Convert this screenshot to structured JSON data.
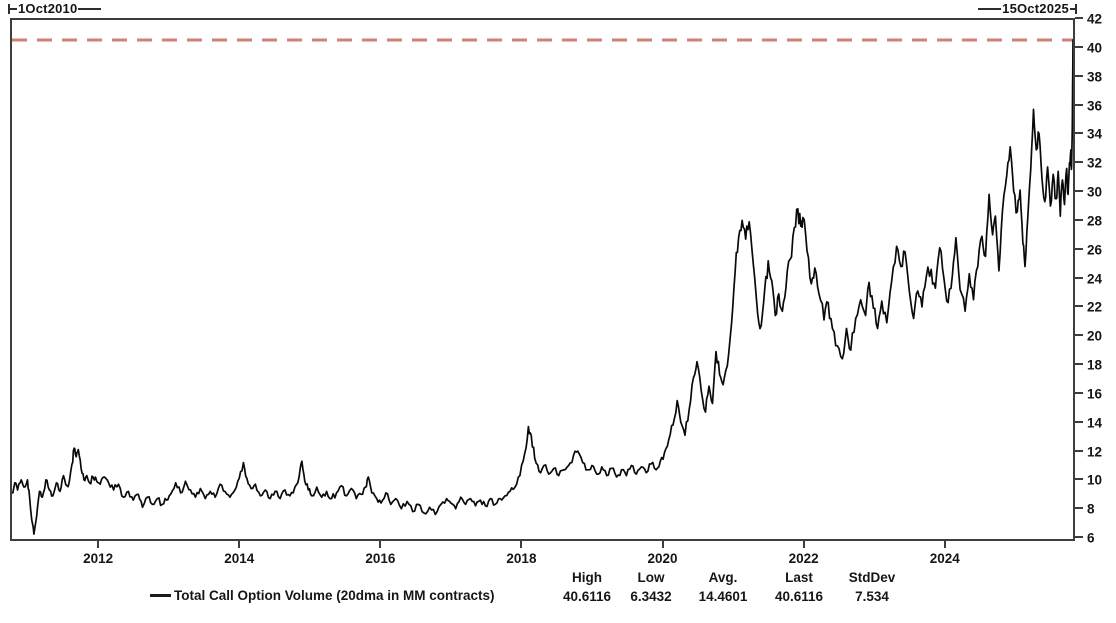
{
  "header": {
    "left_date": "1Oct2010",
    "right_date": "15Oct2025"
  },
  "legend": {
    "series_label": "Total Call Option Volume (20dma in MM contracts)"
  },
  "stats": {
    "headers": [
      "High",
      "Low",
      "Avg.",
      "Last",
      "StdDev"
    ],
    "values": [
      "40.6116",
      "6.3432",
      "14.4601",
      "40.6116",
      "7.534"
    ]
  },
  "colors": {
    "line": "#0a0a0a",
    "reference_dashed": "#cd8379",
    "axis": "#3d3d3d",
    "text": "#161616"
  },
  "chart_data": {
    "type": "line",
    "title": "",
    "xlabel": "",
    "ylabel": "",
    "x_range": [
      2010.75,
      2025.79
    ],
    "y_range": [
      6,
      42
    ],
    "grid": false,
    "legend_position": "bottom",
    "x_ticks": [
      2012,
      2014,
      2016,
      2018,
      2020,
      2022,
      2024
    ],
    "y_ticks": [
      42,
      40,
      38,
      36,
      34,
      32,
      30,
      28,
      26,
      24,
      22,
      20,
      18,
      16,
      14,
      12,
      10,
      8,
      6
    ],
    "reference_line": {
      "value": 40.6116,
      "style": "dashed",
      "color": "#cd8379",
      "label": "high"
    },
    "summary": {
      "high": 40.6116,
      "low": 6.3432,
      "avg": 14.4601,
      "last": 40.6116,
      "stddev": 7.534
    },
    "series": [
      {
        "name": "Total Call Option Volume (20dma in MM contracts)",
        "color": "#0a0a0a",
        "points": [
          [
            2010.75,
            9.2
          ],
          [
            2010.79,
            9.9
          ],
          [
            2010.83,
            9.4
          ],
          [
            2010.88,
            10.1
          ],
          [
            2010.92,
            9.6
          ],
          [
            2010.97,
            10.1
          ],
          [
            2011.0,
            8.9
          ],
          [
            2011.03,
            7.3
          ],
          [
            2011.06,
            6.3432
          ],
          [
            2011.1,
            7.6
          ],
          [
            2011.14,
            9.3
          ],
          [
            2011.18,
            8.9
          ],
          [
            2011.23,
            10.1
          ],
          [
            2011.28,
            9.4
          ],
          [
            2011.33,
            9.0
          ],
          [
            2011.38,
            9.9
          ],
          [
            2011.43,
            9.3
          ],
          [
            2011.48,
            10.4
          ],
          [
            2011.53,
            9.7
          ],
          [
            2011.57,
            10.2
          ],
          [
            2011.6,
            11.2
          ],
          [
            2011.63,
            12.3
          ],
          [
            2011.66,
            11.7
          ],
          [
            2011.69,
            12.2
          ],
          [
            2011.73,
            10.9
          ],
          [
            2011.77,
            10.1
          ],
          [
            2011.81,
            10.4
          ],
          [
            2011.85,
            9.9
          ],
          [
            2011.9,
            10.3
          ],
          [
            2011.95,
            10.0
          ],
          [
            2012.0,
            9.8
          ],
          [
            2012.06,
            10.3
          ],
          [
            2012.12,
            9.9
          ],
          [
            2012.19,
            9.4
          ],
          [
            2012.26,
            9.8
          ],
          [
            2012.33,
            8.9
          ],
          [
            2012.4,
            9.3
          ],
          [
            2012.47,
            8.7
          ],
          [
            2012.54,
            9.1
          ],
          [
            2012.6,
            8.2
          ],
          [
            2012.67,
            8.9
          ],
          [
            2012.74,
            8.4
          ],
          [
            2012.81,
            8.8
          ],
          [
            2012.88,
            8.4
          ],
          [
            2012.94,
            8.7
          ],
          [
            2013.0,
            9.1
          ],
          [
            2013.07,
            9.9
          ],
          [
            2013.14,
            9.2
          ],
          [
            2013.21,
            10.0
          ],
          [
            2013.28,
            9.4
          ],
          [
            2013.35,
            8.9
          ],
          [
            2013.42,
            9.5
          ],
          [
            2013.49,
            8.8
          ],
          [
            2013.56,
            9.3
          ],
          [
            2013.63,
            8.9
          ],
          [
            2013.7,
            9.8
          ],
          [
            2013.77,
            9.3
          ],
          [
            2013.84,
            8.9
          ],
          [
            2013.91,
            9.4
          ],
          [
            2013.97,
            10.2
          ],
          [
            2014.03,
            11.3
          ],
          [
            2014.08,
            10.2
          ],
          [
            2014.14,
            9.5
          ],
          [
            2014.2,
            9.8
          ],
          [
            2014.27,
            9.0
          ],
          [
            2014.34,
            9.4
          ],
          [
            2014.41,
            8.8
          ],
          [
            2014.48,
            9.3
          ],
          [
            2014.55,
            8.8
          ],
          [
            2014.62,
            9.4
          ],
          [
            2014.69,
            9.0
          ],
          [
            2014.76,
            9.6
          ],
          [
            2014.82,
            10.3
          ],
          [
            2014.86,
            11.4
          ],
          [
            2014.9,
            10.0
          ],
          [
            2014.95,
            9.4
          ],
          [
            2015.0,
            9.0
          ],
          [
            2015.07,
            9.6
          ],
          [
            2015.14,
            8.9
          ],
          [
            2015.21,
            9.3
          ],
          [
            2015.28,
            8.8
          ],
          [
            2015.35,
            9.2
          ],
          [
            2015.42,
            9.7
          ],
          [
            2015.49,
            9.0
          ],
          [
            2015.56,
            9.5
          ],
          [
            2015.63,
            8.8
          ],
          [
            2015.7,
            9.1
          ],
          [
            2015.76,
            9.6
          ],
          [
            2015.8,
            10.3
          ],
          [
            2015.85,
            9.2
          ],
          [
            2015.92,
            8.8
          ],
          [
            2015.98,
            8.5
          ],
          [
            2016.05,
            9.2
          ],
          [
            2016.12,
            8.4
          ],
          [
            2016.19,
            8.8
          ],
          [
            2016.27,
            8.1
          ],
          [
            2016.35,
            8.6
          ],
          [
            2016.43,
            7.9
          ],
          [
            2016.51,
            8.4
          ],
          [
            2016.59,
            7.8
          ],
          [
            2016.67,
            8.2
          ],
          [
            2016.75,
            7.7
          ],
          [
            2016.83,
            8.4
          ],
          [
            2016.91,
            8.8
          ],
          [
            2016.97,
            8.5
          ],
          [
            2017.04,
            8.1
          ],
          [
            2017.11,
            8.9
          ],
          [
            2017.18,
            8.4
          ],
          [
            2017.25,
            8.8
          ],
          [
            2017.32,
            8.3
          ],
          [
            2017.39,
            8.7
          ],
          [
            2017.46,
            8.3
          ],
          [
            2017.53,
            8.8
          ],
          [
            2017.6,
            8.4
          ],
          [
            2017.67,
            8.8
          ],
          [
            2017.74,
            9.0
          ],
          [
            2017.81,
            9.3
          ],
          [
            2017.88,
            9.6
          ],
          [
            2017.95,
            10.4
          ],
          [
            2018.02,
            12.0
          ],
          [
            2018.07,
            13.8
          ],
          [
            2018.11,
            13.2
          ],
          [
            2018.16,
            11.6
          ],
          [
            2018.22,
            10.7
          ],
          [
            2018.29,
            11.1
          ],
          [
            2018.36,
            10.5
          ],
          [
            2018.43,
            10.9
          ],
          [
            2018.5,
            10.4
          ],
          [
            2018.57,
            10.8
          ],
          [
            2018.64,
            11.1
          ],
          [
            2018.71,
            11.8
          ],
          [
            2018.77,
            12.1
          ],
          [
            2018.84,
            11.3
          ],
          [
            2018.91,
            10.8
          ],
          [
            2018.97,
            11.1
          ],
          [
            2019.04,
            10.5
          ],
          [
            2019.11,
            11.0
          ],
          [
            2019.18,
            10.4
          ],
          [
            2019.25,
            10.9
          ],
          [
            2019.32,
            10.3
          ],
          [
            2019.39,
            10.8
          ],
          [
            2019.46,
            10.4
          ],
          [
            2019.53,
            11.1
          ],
          [
            2019.6,
            10.5
          ],
          [
            2019.67,
            11.0
          ],
          [
            2019.74,
            10.6
          ],
          [
            2019.81,
            11.2
          ],
          [
            2019.88,
            10.8
          ],
          [
            2019.94,
            11.4
          ],
          [
            2020.0,
            12.0
          ],
          [
            2020.06,
            12.9
          ],
          [
            2020.12,
            13.9
          ],
          [
            2020.18,
            15.6
          ],
          [
            2020.23,
            14.1
          ],
          [
            2020.29,
            13.2
          ],
          [
            2020.35,
            15.0
          ],
          [
            2020.41,
            17.2
          ],
          [
            2020.46,
            18.3
          ],
          [
            2020.52,
            16.3
          ],
          [
            2020.58,
            14.8
          ],
          [
            2020.63,
            16.6
          ],
          [
            2020.68,
            15.4
          ],
          [
            2020.73,
            19.0
          ],
          [
            2020.78,
            17.4
          ],
          [
            2020.83,
            16.7
          ],
          [
            2020.89,
            18.0
          ],
          [
            2020.95,
            21.0
          ],
          [
            2021.0,
            24.5
          ],
          [
            2021.05,
            26.9
          ],
          [
            2021.1,
            28.1
          ],
          [
            2021.15,
            26.8
          ],
          [
            2021.2,
            28.0
          ],
          [
            2021.26,
            25.0
          ],
          [
            2021.32,
            21.6
          ],
          [
            2021.37,
            20.8
          ],
          [
            2021.42,
            23.3
          ],
          [
            2021.47,
            25.3
          ],
          [
            2021.52,
            23.9
          ],
          [
            2021.57,
            21.5
          ],
          [
            2021.62,
            23.0
          ],
          [
            2021.67,
            21.8
          ],
          [
            2021.72,
            23.4
          ],
          [
            2021.78,
            25.4
          ],
          [
            2021.84,
            27.6
          ],
          [
            2021.89,
            28.9
          ],
          [
            2021.93,
            27.7
          ],
          [
            2021.96,
            28.3
          ],
          [
            2022.02,
            26.0
          ],
          [
            2022.08,
            23.7
          ],
          [
            2022.13,
            24.8
          ],
          [
            2022.19,
            23.0
          ],
          [
            2022.26,
            21.2
          ],
          [
            2022.32,
            22.4
          ],
          [
            2022.38,
            20.6
          ],
          [
            2022.45,
            19.4
          ],
          [
            2022.52,
            18.5
          ],
          [
            2022.58,
            20.6
          ],
          [
            2022.64,
            19.1
          ],
          [
            2022.71,
            21.3
          ],
          [
            2022.78,
            22.6
          ],
          [
            2022.85,
            21.5
          ],
          [
            2022.9,
            23.8
          ],
          [
            2022.96,
            22.0
          ],
          [
            2023.02,
            20.6
          ],
          [
            2023.08,
            22.5
          ],
          [
            2023.15,
            21.0
          ],
          [
            2023.22,
            23.9
          ],
          [
            2023.29,
            26.3
          ],
          [
            2023.35,
            24.9
          ],
          [
            2023.41,
            25.9
          ],
          [
            2023.47,
            23.2
          ],
          [
            2023.53,
            21.3
          ],
          [
            2023.59,
            23.2
          ],
          [
            2023.65,
            22.1
          ],
          [
            2023.71,
            24.2
          ],
          [
            2023.78,
            24.7
          ],
          [
            2023.84,
            23.4
          ],
          [
            2023.9,
            26.2
          ],
          [
            2023.96,
            24.1
          ],
          [
            2024.02,
            22.4
          ],
          [
            2024.08,
            24.3
          ],
          [
            2024.13,
            26.9
          ],
          [
            2024.19,
            23.3
          ],
          [
            2024.26,
            21.8
          ],
          [
            2024.32,
            24.4
          ],
          [
            2024.38,
            22.6
          ],
          [
            2024.44,
            24.9
          ],
          [
            2024.5,
            27.0
          ],
          [
            2024.55,
            25.6
          ],
          [
            2024.6,
            29.9
          ],
          [
            2024.65,
            27.1
          ],
          [
            2024.69,
            28.4
          ],
          [
            2024.74,
            24.6
          ],
          [
            2024.79,
            28.8
          ],
          [
            2024.85,
            31.2
          ],
          [
            2024.9,
            33.2
          ],
          [
            2024.95,
            30.1
          ],
          [
            2025.0,
            28.7
          ],
          [
            2025.04,
            30.2
          ],
          [
            2025.08,
            26.5
          ],
          [
            2025.11,
            24.9
          ],
          [
            2025.15,
            28.4
          ],
          [
            2025.19,
            31.6
          ],
          [
            2025.23,
            35.8
          ],
          [
            2025.27,
            33.0
          ],
          [
            2025.31,
            34.1
          ],
          [
            2025.35,
            31.0
          ],
          [
            2025.39,
            29.4
          ],
          [
            2025.43,
            31.8
          ],
          [
            2025.47,
            29.1
          ],
          [
            2025.51,
            31.3
          ],
          [
            2025.55,
            29.6
          ],
          [
            2025.58,
            31.5
          ],
          [
            2025.61,
            28.4
          ],
          [
            2025.64,
            30.9
          ],
          [
            2025.67,
            29.2
          ],
          [
            2025.7,
            31.7
          ],
          [
            2025.72,
            29.9
          ],
          [
            2025.74,
            32.1
          ],
          [
            2025.76,
            33.0
          ],
          [
            2025.77,
            31.9
          ],
          [
            2025.78,
            34.6
          ],
          [
            2025.785,
            37.5
          ],
          [
            2025.79,
            40.6116
          ]
        ]
      }
    ]
  }
}
